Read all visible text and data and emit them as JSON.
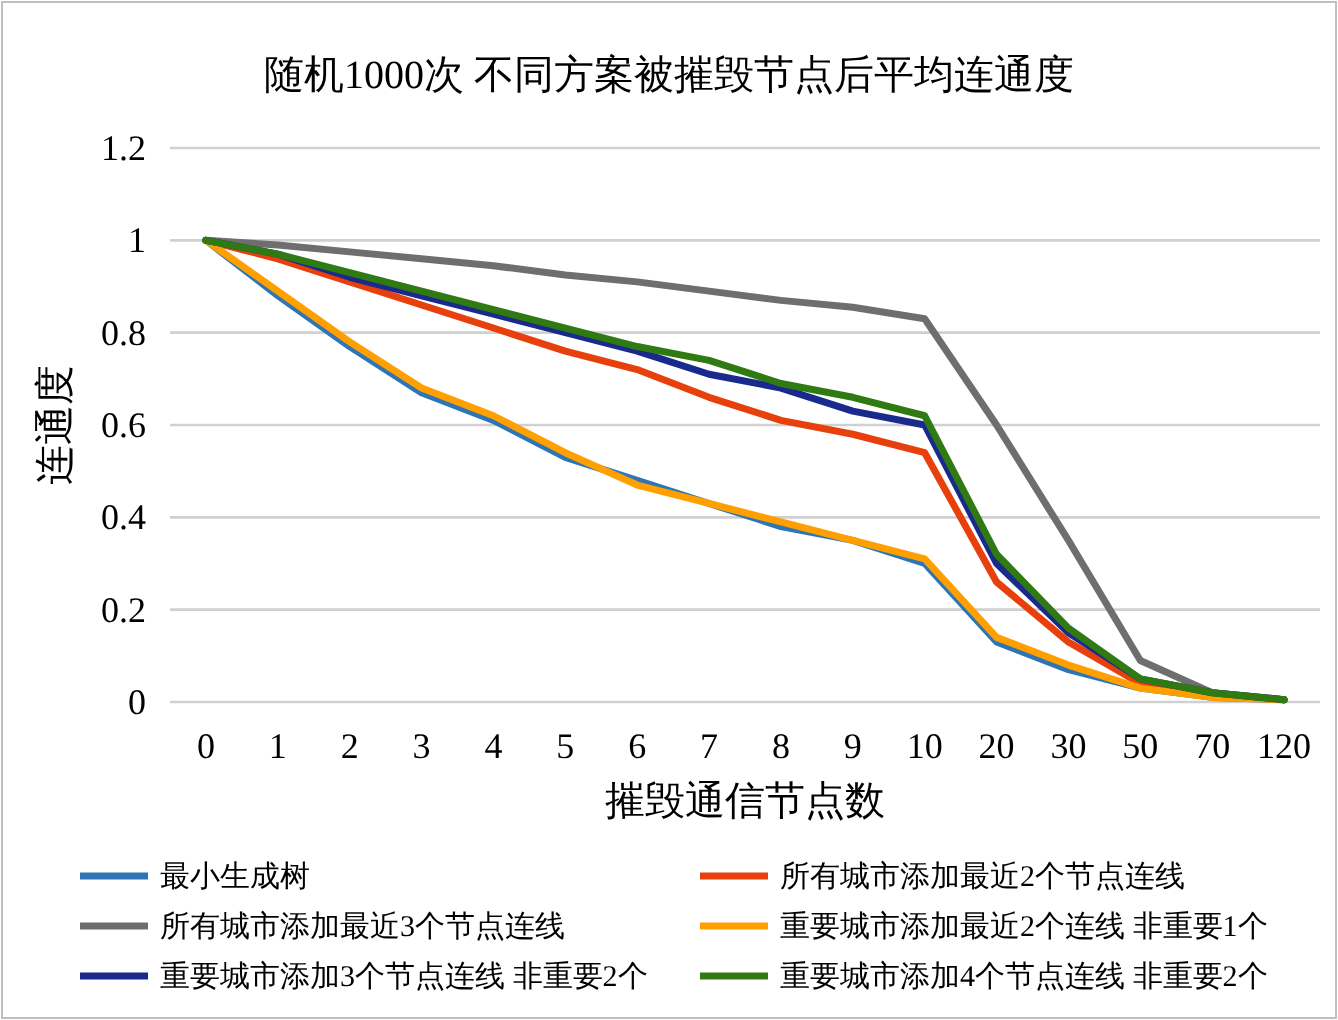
{
  "chart_data": {
    "type": "line",
    "title": "随机1000次 不同方案被摧毁节点后平均连通度",
    "xlabel": "摧毁通信节点数",
    "ylabel": "连通度",
    "categories": [
      "0",
      "1",
      "2",
      "3",
      "4",
      "5",
      "6",
      "7",
      "8",
      "9",
      "10",
      "20",
      "30",
      "50",
      "70",
      "120"
    ],
    "ylim": [
      0,
      1.2
    ],
    "yticks": [
      0,
      0.2,
      0.4,
      0.6,
      0.8,
      1,
      1.2
    ],
    "grid": "y",
    "legend": "bottom",
    "marker": "none",
    "line_style": "solid",
    "series": [
      {
        "name": "最小生成树",
        "color": "#2e75b6",
        "values": [
          1,
          0.88,
          0.77,
          0.67,
          0.61,
          0.53,
          0.48,
          0.43,
          0.38,
          0.35,
          0.3,
          0.13,
          0.07,
          0.03,
          0.01,
          0.005
        ]
      },
      {
        "name": "所有城市添加最近2个节点连线",
        "color": "#e8400c",
        "values": [
          1,
          0.96,
          0.91,
          0.86,
          0.81,
          0.76,
          0.72,
          0.66,
          0.61,
          0.58,
          0.54,
          0.26,
          0.13,
          0.04,
          0.015,
          0.005
        ]
      },
      {
        "name": "所有城市添加最近3个节点连线",
        "color": "#6e6e6e",
        "values": [
          1,
          0.99,
          0.975,
          0.96,
          0.945,
          0.925,
          0.91,
          0.89,
          0.87,
          0.855,
          0.83,
          0.6,
          0.35,
          0.09,
          0.02,
          0.005
        ]
      },
      {
        "name": "重要城市添加最近2个连线 非重要1个",
        "color": "#ffa000",
        "values": [
          1,
          0.89,
          0.78,
          0.68,
          0.62,
          0.54,
          0.47,
          0.43,
          0.39,
          0.35,
          0.31,
          0.14,
          0.08,
          0.03,
          0.01,
          0.005
        ]
      },
      {
        "name": "重要城市添加3个节点连线 非重要2个",
        "color": "#1a2a8c",
        "values": [
          1,
          0.97,
          0.92,
          0.88,
          0.84,
          0.8,
          0.76,
          0.71,
          0.68,
          0.63,
          0.6,
          0.3,
          0.15,
          0.05,
          0.02,
          0.005
        ]
      },
      {
        "name": "重要城市添加4个节点连线 非重要2个",
        "color": "#2f7a12",
        "values": [
          1,
          0.97,
          0.93,
          0.89,
          0.85,
          0.81,
          0.77,
          0.74,
          0.69,
          0.66,
          0.62,
          0.32,
          0.16,
          0.05,
          0.02,
          0.005
        ]
      }
    ]
  }
}
